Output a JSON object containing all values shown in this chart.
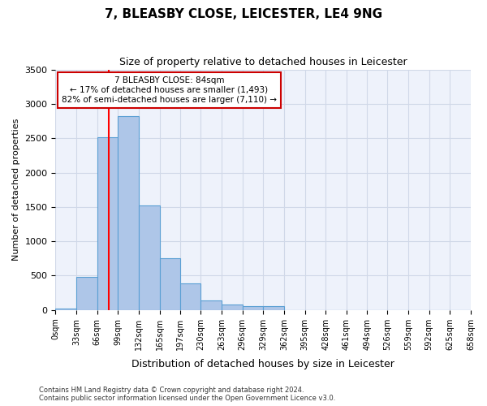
{
  "title": "7, BLEASBY CLOSE, LEICESTER, LE4 9NG",
  "subtitle": "Size of property relative to detached houses in Leicester",
  "xlabel": "Distribution of detached houses by size in Leicester",
  "ylabel": "Number of detached properties",
  "bar_values": [
    25,
    480,
    2520,
    2820,
    1520,
    750,
    390,
    145,
    75,
    55,
    55,
    0,
    0,
    0,
    0,
    0,
    0,
    0,
    0,
    0
  ],
  "bin_edges": [
    0,
    33,
    66,
    99,
    132,
    165,
    197,
    230,
    263,
    296,
    329,
    362,
    395,
    428,
    461,
    494,
    526,
    559,
    592,
    625,
    658
  ],
  "tick_labels": [
    "0sqm",
    "33sqm",
    "66sqm",
    "99sqm",
    "132sqm",
    "165sqm",
    "197sqm",
    "230sqm",
    "263sqm",
    "296sqm",
    "329sqm",
    "362sqm",
    "395sqm",
    "428sqm",
    "461sqm",
    "494sqm",
    "526sqm",
    "559sqm",
    "592sqm",
    "625sqm",
    "658sqm"
  ],
  "bar_color": "#aec6e8",
  "bar_edge_color": "#5a9fd4",
  "grid_color": "#d0d8e8",
  "background_color": "#eef2fb",
  "red_line_x": 84,
  "annotation_text": "7 BLEASBY CLOSE: 84sqm\n← 17% of detached houses are smaller (1,493)\n82% of semi-detached houses are larger (7,110) →",
  "annotation_box_color": "#ffffff",
  "annotation_box_edge_color": "#cc0000",
  "ylim": [
    0,
    3500
  ],
  "yticks": [
    0,
    500,
    1000,
    1500,
    2000,
    2500,
    3000,
    3500
  ],
  "footer_line1": "Contains HM Land Registry data © Crown copyright and database right 2024.",
  "footer_line2": "Contains public sector information licensed under the Open Government Licence v3.0."
}
